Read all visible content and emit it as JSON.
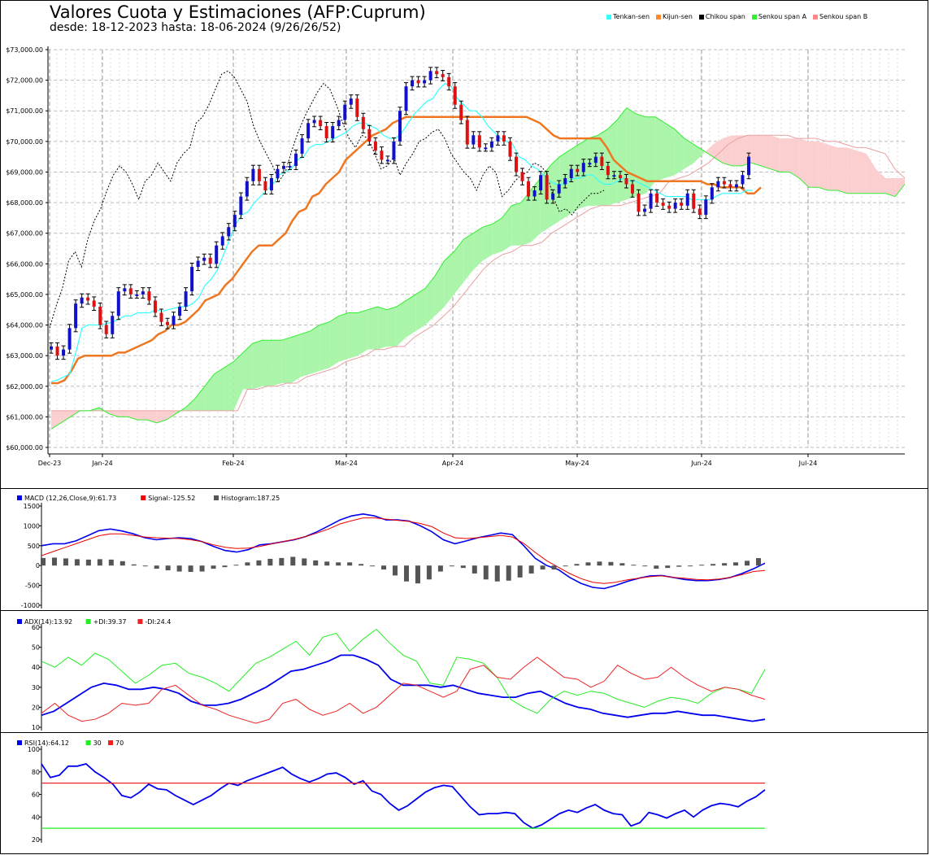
{
  "header": {
    "title": "Valores Cuota y Estimaciones (AFP:Cuprum)",
    "subtitle": "desde: 18-12-2023 hasta: 18-06-2024 (9/26/26/52)"
  },
  "legend": [
    {
      "label": "Tenkan-sen",
      "color": "#33ffff"
    },
    {
      "label": "Kijun-sen",
      "color": "#ff8833"
    },
    {
      "label": "Chikou span",
      "color": "#000000"
    },
    {
      "label": "Senkou span A",
      "color": "#33ee33"
    },
    {
      "label": "Senkou span B",
      "color": "#ff8888"
    }
  ],
  "chart_data": [
    {
      "type": "candlestick",
      "title": "Valores Cuota y Estimaciones (AFP:Cuprum)",
      "ylim": [
        60000,
        73000
      ],
      "yticks": [
        "$60,000.00",
        "$61,000.00",
        "$62,000.00",
        "$63,000.00",
        "$64,000.00",
        "$65,000.00",
        "$66,000.00",
        "$67,000.00",
        "$68,000.00",
        "$69,000.00",
        "$70,000.00",
        "$71,000.00",
        "$72,000.00",
        "$73,000.00"
      ],
      "xticks": [
        "Dec-23",
        "Jan-24",
        "Feb-24",
        "Mar-24",
        "Apr-24",
        "May-24",
        "Jun-24",
        "Jul-24"
      ],
      "grid": true,
      "close": [
        63300,
        63000,
        63200,
        63900,
        64700,
        64900,
        64800,
        64600,
        64000,
        63700,
        64300,
        65100,
        65200,
        65000,
        65000,
        65100,
        64800,
        64400,
        64100,
        64000,
        64300,
        64600,
        65100,
        65900,
        66100,
        66200,
        66000,
        66600,
        66900,
        67200,
        67600,
        68200,
        68700,
        69100,
        68700,
        68400,
        68800,
        69100,
        69200,
        69200,
        69600,
        70100,
        70600,
        70700,
        70500,
        70100,
        70500,
        70700,
        71200,
        71400,
        70800,
        70400,
        70000,
        69700,
        69400,
        69400,
        70000,
        71000,
        71800,
        72000,
        71900,
        72000,
        72300,
        72200,
        72100,
        71800,
        71200,
        70700,
        69900,
        70200,
        69800,
        69800,
        70000,
        70200,
        70000,
        69500,
        69000,
        68700,
        68200,
        68400,
        68900,
        68100,
        68300,
        68600,
        68800,
        69100,
        69000,
        69300,
        69300,
        69500,
        69200,
        68900,
        68900,
        68800,
        68600,
        68300,
        67700,
        67800,
        68300,
        68000,
        67900,
        67800,
        68000,
        67900,
        68300,
        67800,
        67600,
        68100,
        68500,
        68700,
        68600,
        68500,
        68600,
        68900,
        69500
      ],
      "tenkan": [
        62150,
        62200,
        62300,
        62400,
        63100,
        63900,
        64000,
        64000,
        64000,
        64050,
        64100,
        64200,
        64300,
        64300,
        64400,
        64400,
        64400,
        64500,
        64450,
        64500,
        64550,
        64600,
        64600,
        64700,
        64900,
        65300,
        65500,
        65800,
        66300,
        66800,
        67300,
        67600,
        67700,
        68000,
        68200,
        68400,
        68600,
        68900,
        69000,
        69100,
        69400,
        69500,
        69800,
        69900,
        69900,
        70000,
        70100,
        70200,
        70300,
        70500,
        70600,
        70600,
        70500,
        70400,
        70200,
        70100,
        70100,
        70300,
        70600,
        70900,
        71100,
        71300,
        71400,
        71700,
        71900,
        71800,
        71400,
        71200,
        71000,
        71000,
        70800,
        70500,
        70300,
        70100,
        70000,
        69900,
        69500,
        69400,
        69200,
        69100,
        68900,
        68700,
        68600,
        68600,
        68700,
        68800,
        68800,
        68900,
        68900,
        68700,
        68600,
        68600,
        68700,
        68800,
        68700,
        68700,
        68600,
        68500,
        68400,
        68300,
        68200,
        68200,
        68200,
        68200,
        68100,
        68100,
        68100,
        68100,
        68200,
        68300,
        68300,
        68300,
        68300,
        68400,
        68400
      ],
      "kijun": [
        62100,
        62100,
        62200,
        62500,
        62900,
        63000,
        63000,
        63000,
        63000,
        63000,
        63100,
        63100,
        63200,
        63300,
        63400,
        63500,
        63700,
        63800,
        64000,
        64000,
        64100,
        64300,
        64500,
        64800,
        64900,
        65000,
        65300,
        65500,
        65800,
        66100,
        66400,
        66600,
        66600,
        66600,
        66800,
        67000,
        67400,
        67700,
        67800,
        68200,
        68300,
        68600,
        68800,
        69000,
        69400,
        69600,
        69800,
        70000,
        70200,
        70300,
        70400,
        70600,
        70700,
        70800,
        70800,
        70800,
        70800,
        70800,
        70800,
        70800,
        70800,
        70800,
        70800,
        70800,
        70800,
        70800,
        70800,
        70800,
        70800,
        70800,
        70800,
        70800,
        70700,
        70600,
        70400,
        70200,
        70100,
        70100,
        70100,
        70100,
        70100,
        70100,
        70100,
        69800,
        69400,
        69200,
        69000,
        68900,
        68800,
        68700,
        68700,
        68700,
        68700,
        68700,
        68700,
        68700,
        68700,
        68700,
        68600,
        68600,
        68500,
        68500,
        68500,
        68500,
        68300,
        68300,
        68500
      ],
      "chikou": [
        63900,
        64600,
        65200,
        66100,
        66400,
        65900,
        66800,
        67400,
        67800,
        68400,
        68900,
        69200,
        69000,
        68600,
        68100,
        68700,
        68900,
        69300,
        69000,
        68700,
        69300,
        69600,
        69800,
        70600,
        70800,
        71200,
        71700,
        72200,
        72300,
        72100,
        71700,
        71300,
        70500,
        70000,
        69600,
        69200,
        68700,
        69000,
        69700,
        70300,
        70800,
        71200,
        71600,
        71900,
        71700,
        71200,
        70600,
        70100,
        69800,
        70200,
        70100,
        69600,
        69100,
        69200,
        69500,
        68900,
        69300,
        69600,
        70000,
        70100,
        70300,
        70400,
        70100,
        69600,
        69300,
        69000,
        68800,
        68400,
        68900,
        69200,
        69000,
        68200,
        68400,
        68700,
        68900,
        69000,
        69300,
        69200,
        69000,
        68200,
        67700,
        67800,
        67600,
        67900,
        68100,
        68300,
        68300,
        68400
      ],
      "senkou_a": [
        60600,
        60800,
        61000,
        61200,
        61200,
        61300,
        61100,
        61000,
        61000,
        60900,
        60900,
        60800,
        60900,
        61100,
        61300,
        61600,
        62000,
        62400,
        62600,
        62800,
        63100,
        63400,
        63500,
        63500,
        63500,
        63600,
        63700,
        63800,
        64000,
        64100,
        64300,
        64400,
        64400,
        64500,
        64600,
        64500,
        64600,
        64800,
        65000,
        65200,
        65600,
        66100,
        66400,
        66800,
        67000,
        67200,
        67300,
        67500,
        67900,
        68000,
        68400,
        68800,
        69200,
        69500,
        69700,
        69900,
        70100,
        70200,
        70400,
        70700,
        71100,
        70900,
        70800,
        70800,
        70600,
        70400,
        70100,
        69900,
        69700,
        69500,
        69300,
        69200,
        69200,
        69300,
        69200,
        69100,
        69000,
        69000,
        68800,
        68500,
        68500,
        68400,
        68400,
        68300,
        68300,
        68300,
        68300,
        68300,
        68200,
        68600
      ],
      "senkou_b": [
        61200,
        61200,
        61200,
        61200,
        61200,
        61200,
        61200,
        61200,
        61200,
        61200,
        61200,
        61200,
        61200,
        61200,
        61200,
        61200,
        61200,
        61200,
        61200,
        61200,
        61900,
        61900,
        62000,
        62000,
        62100,
        62100,
        62300,
        62400,
        62500,
        62600,
        62800,
        62900,
        63000,
        63200,
        63200,
        63300,
        63300,
        63600,
        63800,
        64000,
        64300,
        64600,
        65000,
        65400,
        65800,
        66100,
        66300,
        66400,
        66600,
        66600,
        66700,
        67000,
        67200,
        67400,
        67600,
        67800,
        67900,
        67900,
        67900,
        68000,
        68100,
        68200,
        68300,
        68700,
        68800,
        68900,
        69100,
        69300,
        69600,
        69900,
        70100,
        70200,
        70200,
        70200,
        70200,
        70200,
        70100,
        70100,
        70100,
        70000,
        70000,
        69900,
        69800,
        69800,
        69700,
        69600,
        69100,
        68800
      ]
    },
    {
      "type": "line",
      "legend": [
        "MACD (12,26,Close,9):61.73",
        "Signal:-125.52",
        "Histogram:187.25"
      ],
      "ylim": [
        -1000,
        1500
      ],
      "yticks": [
        "1500",
        "1000",
        "500",
        "0",
        "-500",
        "-1000"
      ],
      "series": [
        {
          "name": "MACD (12,26,Close,9)",
          "color": "#0000ee",
          "values": [
            500,
            550,
            550,
            620,
            750,
            880,
            920,
            870,
            800,
            700,
            650,
            680,
            700,
            680,
            600,
            480,
            380,
            340,
            400,
            520,
            550,
            600,
            650,
            730,
            850,
            1000,
            1150,
            1250,
            1300,
            1250,
            1150,
            1150,
            1120,
            1000,
            850,
            650,
            550,
            620,
            700,
            760,
            820,
            780,
            500,
            180,
            0,
            -100,
            -300,
            -450,
            -550,
            -580,
            -500,
            -400,
            -320,
            -260,
            -250,
            -300,
            -350,
            -380,
            -380,
            -350,
            -300,
            -200,
            -80,
            60
          ]
        },
        {
          "name": "Signal",
          "color": "#ee0000",
          "values": [
            250,
            350,
            450,
            550,
            650,
            750,
            800,
            800,
            760,
            720,
            700,
            690,
            680,
            650,
            600,
            520,
            460,
            430,
            440,
            480,
            540,
            600,
            660,
            730,
            820,
            920,
            1050,
            1130,
            1200,
            1200,
            1170,
            1140,
            1110,
            1060,
            980,
            820,
            700,
            680,
            700,
            730,
            760,
            720,
            560,
            330,
            120,
            -40,
            -200,
            -330,
            -420,
            -450,
            -420,
            -360,
            -320,
            -280,
            -260,
            -300,
            -320,
            -350,
            -360,
            -340,
            -300,
            -230,
            -150,
            -125
          ]
        },
        {
          "name": "Histogram",
          "color": "#555555",
          "values": [
            190,
            200,
            180,
            160,
            150,
            160,
            150,
            110,
            30,
            -20,
            -80,
            -120,
            -150,
            -160,
            -150,
            -80,
            -40,
            20,
            80,
            130,
            170,
            190,
            220,
            180,
            130,
            100,
            80,
            80,
            40,
            -20,
            -100,
            -250,
            -400,
            -450,
            -350,
            -150,
            0,
            -60,
            -200,
            -350,
            -400,
            -380,
            -300,
            -200,
            -100,
            -100,
            -20,
            40,
            80,
            100,
            90,
            60,
            20,
            -20,
            -80,
            -60,
            -30,
            -10,
            20,
            40,
            60,
            80,
            120,
            187
          ]
        }
      ]
    },
    {
      "type": "line",
      "legend": [
        "ADX(14):13.92",
        "+DI:39.37",
        "-DI:24.4"
      ],
      "ylim": [
        10,
        60
      ],
      "yticks": [
        "60",
        "50",
        "40",
        "30",
        "20",
        "10"
      ],
      "series": [
        {
          "name": "ADX(14)",
          "color": "#0000ee",
          "values": [
            16,
            18,
            22,
            26,
            30,
            32,
            31,
            29,
            29,
            30,
            29,
            27,
            23,
            21,
            21,
            22,
            24,
            27,
            30,
            34,
            38,
            39,
            41,
            43,
            46,
            46,
            44,
            41,
            34,
            31,
            31,
            31,
            30,
            31,
            29,
            27,
            26,
            25,
            25,
            27,
            28,
            25,
            22,
            20,
            19,
            17,
            16,
            15,
            16,
            17,
            17,
            18,
            17,
            16,
            16,
            15,
            14,
            13,
            14
          ]
        },
        {
          "name": "+DI",
          "color": "#22ee22",
          "values": [
            43,
            40,
            45,
            41,
            47,
            44,
            38,
            32,
            36,
            41,
            42,
            37,
            35,
            32,
            28,
            35,
            42,
            45,
            49,
            53,
            46,
            55,
            57,
            48,
            54,
            59,
            52,
            46,
            43,
            32,
            31,
            45,
            44,
            42,
            35,
            24,
            20,
            17,
            24,
            28,
            26,
            28,
            27,
            24,
            22,
            20,
            23,
            25,
            24,
            22,
            27,
            30,
            29,
            27,
            39
          ]
        },
        {
          "name": "-DI",
          "color": "#ee2222",
          "values": [
            17,
            22,
            16,
            13,
            14,
            17,
            22,
            21,
            22,
            29,
            31,
            26,
            21,
            19,
            16,
            14,
            12,
            14,
            22,
            24,
            19,
            16,
            18,
            22,
            17,
            20,
            26,
            32,
            31,
            28,
            25,
            28,
            39,
            41,
            35,
            34,
            40,
            45,
            40,
            35,
            34,
            30,
            33,
            41,
            37,
            34,
            35,
            40,
            35,
            31,
            28,
            30,
            29,
            26,
            24
          ]
        }
      ]
    },
    {
      "type": "line",
      "legend": [
        "RSI(14):64.12",
        "30",
        "70"
      ],
      "ylim": [
        20,
        100
      ],
      "yticks": [
        "100",
        "80",
        "60",
        "40",
        "20"
      ],
      "series": [
        {
          "name": "RSI(14)",
          "color": "#0000ee",
          "values": [
            87,
            75,
            77,
            85,
            85,
            87,
            80,
            75,
            69,
            59,
            57,
            62,
            69,
            65,
            64,
            59,
            55,
            51,
            55,
            59,
            65,
            70,
            68,
            72,
            75,
            78,
            81,
            84,
            78,
            74,
            71,
            74,
            78,
            79,
            75,
            69,
            72,
            63,
            60,
            52,
            46,
            50,
            56,
            62,
            66,
            68,
            67,
            58,
            49,
            42,
            43,
            43,
            44,
            43,
            35,
            30,
            33,
            38,
            43,
            46,
            44,
            48,
            51,
            46,
            43,
            42,
            32,
            35,
            44,
            42,
            39,
            43,
            46,
            40,
            46,
            50,
            52,
            51,
            49,
            54,
            58,
            64
          ]
        },
        {
          "name": "30",
          "color": "#22ee22",
          "values": [
            30,
            30
          ]
        },
        {
          "name": "70",
          "color": "#ee2222",
          "values": [
            70,
            70
          ]
        }
      ]
    }
  ]
}
